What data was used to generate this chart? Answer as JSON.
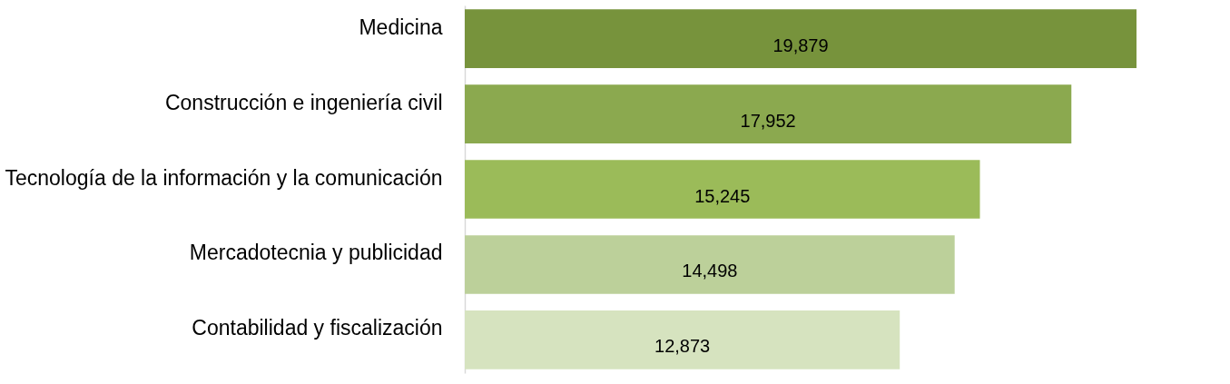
{
  "chart_data": {
    "type": "bar",
    "orientation": "horizontal",
    "legend": false,
    "categories": [
      "Medicina",
      "Construcción e ingeniería civil",
      "Tecnología de la información y la comunicación",
      "Mercadotecnia y publicidad",
      "Contabilidad y fiscalización"
    ],
    "values": [
      19879,
      17952,
      15245,
      14498,
      12873
    ],
    "value_labels": [
      "19,879",
      "17,952",
      "15,245",
      "14,498",
      "12,873"
    ],
    "colors": [
      "#77933c",
      "#8ba94f",
      "#9bbb59",
      "#bcd09a",
      "#d6e3bf"
    ]
  }
}
